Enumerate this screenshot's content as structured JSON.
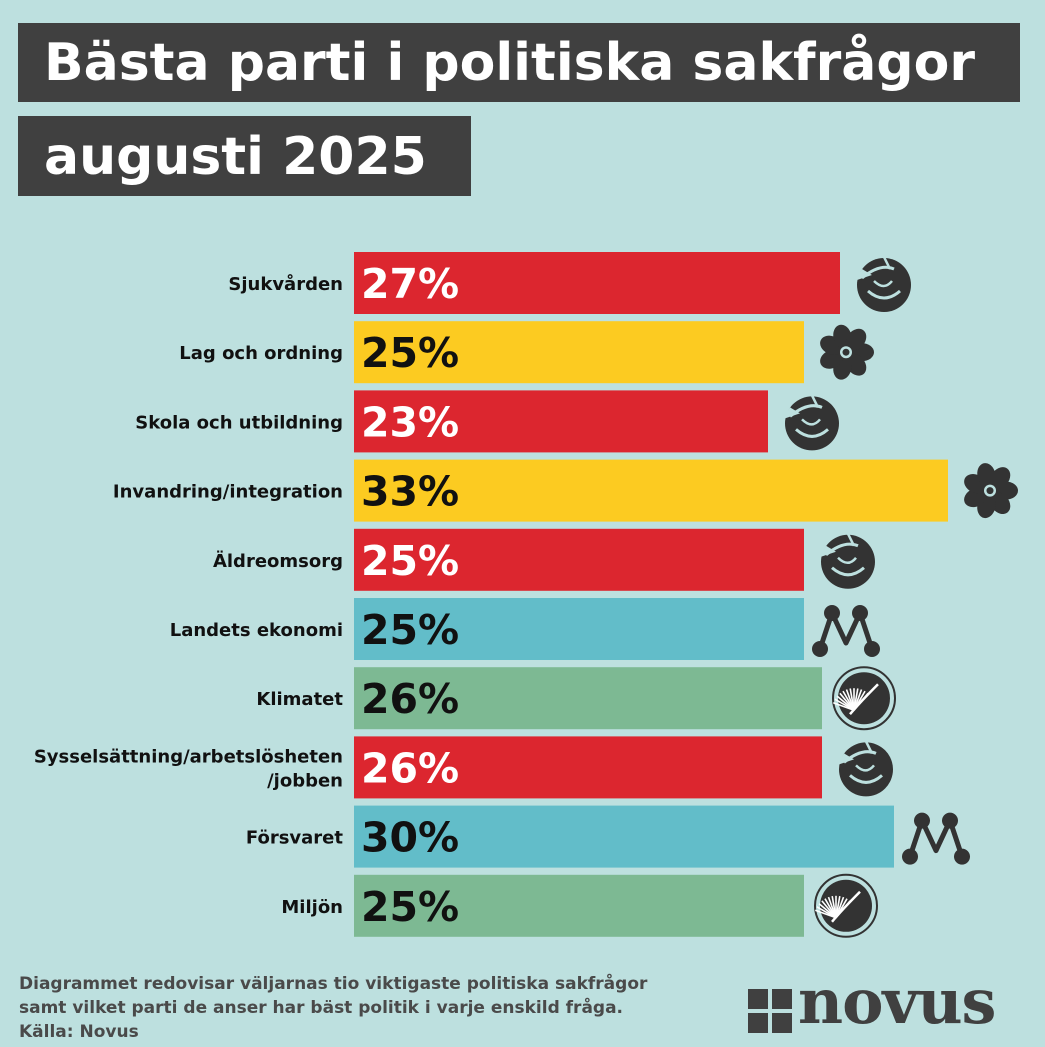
{
  "title": {
    "line1": "Bästa parti i politiska sakfrågor",
    "line2": "augusti 2025"
  },
  "colors": {
    "background": "#bde0df",
    "title_box": "#404040",
    "S": "#dc262f",
    "SD": "#fccb21",
    "M": "#62bdc9",
    "MP": "#7db993"
  },
  "chart_data": {
    "type": "bar",
    "orientation": "horizontal",
    "categories": [
      "Sjukvården",
      "Lag och ordning",
      "Skola och utbildning",
      "Invandring/integration",
      "Äldreomsorg",
      "Landets ekonomi",
      "Klimatet",
      "Sysselsättning/arbetslösheten/jobben",
      "Försvaret",
      "Miljön"
    ],
    "category_lines": [
      [
        "Sjukvården"
      ],
      [
        "Lag och ordning"
      ],
      [
        "Skola och utbildning"
      ],
      [
        "Invandring/integration"
      ],
      [
        "Äldreomsorg"
      ],
      [
        "Landets ekonomi"
      ],
      [
        "Klimatet"
      ],
      [
        "Sysselsättning/arbetslösheten",
        "/jobben"
      ],
      [
        "Försvaret"
      ],
      [
        "Miljön"
      ]
    ],
    "values": [
      27,
      25,
      23,
      33,
      25,
      25,
      26,
      26,
      30,
      25
    ],
    "value_labels": [
      "27%",
      "25%",
      "23%",
      "33%",
      "25%",
      "25%",
      "26%",
      "26%",
      "30%",
      "25%"
    ],
    "party_icons": [
      "rose-icon",
      "flower-icon",
      "rose-icon",
      "flower-icon",
      "rose-icon",
      "m-logo-icon",
      "dandelion-icon",
      "rose-icon",
      "m-logo-icon",
      "dandelion-icon"
    ],
    "bar_colors": [
      "#dc262f",
      "#fccb21",
      "#dc262f",
      "#fccb21",
      "#dc262f",
      "#62bdc9",
      "#7db993",
      "#dc262f",
      "#62bdc9",
      "#7db993"
    ],
    "value_label_colors": [
      "#ffffff",
      "#111111",
      "#ffffff",
      "#111111",
      "#ffffff",
      "#111111",
      "#111111",
      "#ffffff",
      "#111111",
      "#111111"
    ],
    "xlim": [
      0,
      33
    ],
    "grid": false,
    "legend": "none"
  },
  "footnote": {
    "line1": "Diagrammet redovisar väljarnas tio viktigaste politiska sakfrågor",
    "line2": "samt vilket parti de anser har bäst politik i varje enskild fråga.",
    "source": "Källa: Novus"
  },
  "logo": {
    "text": "NOVUS",
    "icon": "novus-squares-icon"
  }
}
